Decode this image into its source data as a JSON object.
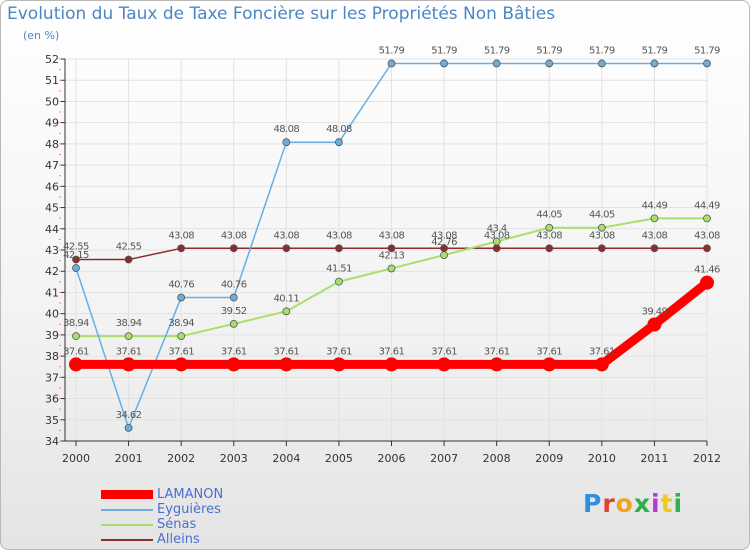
{
  "title": "Evolution du Taux de Taxe Foncière sur les Propriétés Non Bâties",
  "subtitle": "(en %)",
  "logo": {
    "text": "Proxiti",
    "colors": [
      "#2f8fe0",
      "#e0402f",
      "#f2a51c",
      "#2fb04a",
      "#b43ad0",
      "#f2c81c",
      "#2fb04a"
    ]
  },
  "chart_data": {
    "type": "line",
    "x": [
      "2000",
      "2001",
      "2002",
      "2003",
      "2004",
      "2005",
      "2006",
      "2007",
      "2008",
      "2009",
      "2010",
      "2011",
      "2012"
    ],
    "ylim": [
      34,
      52
    ],
    "yticks": [
      34,
      35,
      36,
      37,
      38,
      39,
      40,
      41,
      42,
      43,
      44,
      45,
      46,
      47,
      48,
      49,
      50,
      51,
      52
    ],
    "grid": true,
    "legend": "bottom-left",
    "series": [
      {
        "name": "LAMANON",
        "color": "#ff0000",
        "width": 9,
        "marker": 7,
        "values": [
          37.61,
          37.61,
          37.61,
          37.61,
          37.61,
          37.61,
          37.61,
          37.61,
          37.61,
          37.61,
          37.61,
          39.49,
          41.46
        ],
        "labels": [
          "37.61",
          "37.61",
          "37.61",
          "37.61",
          "37.61",
          "37.61",
          "37.61",
          "37.61",
          "37.61",
          "37.61",
          "37.61",
          "39.49",
          "41.46"
        ]
      },
      {
        "name": "Eyguières",
        "color": "#6aaee0",
        "width": 1.5,
        "marker": 3.5,
        "values": [
          42.15,
          34.62,
          40.76,
          40.76,
          48.08,
          48.08,
          51.79,
          51.79,
          51.79,
          51.79,
          51.79,
          51.79,
          51.79
        ],
        "labels": [
          "42.15",
          "34.62",
          "40.76",
          "40.76",
          "48.08",
          "48.08",
          "51.79",
          "51.79",
          "51.79",
          "51.79",
          "51.79",
          "51.79",
          "51.79"
        ]
      },
      {
        "name": "Sénas",
        "color": "#a8e06c",
        "width": 2,
        "marker": 3.5,
        "values": [
          38.94,
          38.94,
          38.94,
          39.52,
          40.11,
          41.51,
          42.13,
          42.76,
          43.4,
          44.05,
          44.05,
          44.49,
          44.49
        ],
        "labels": [
          "38.94",
          "38.94",
          "38.94",
          "39.52",
          "40.11",
          "41.51",
          "42.13",
          "42.76",
          "43.4",
          "44.05",
          "44.05",
          "44.49",
          "44.49"
        ]
      },
      {
        "name": "Alleins",
        "color": "#8b2e2e",
        "width": 1.5,
        "marker": 3.5,
        "values": [
          42.55,
          42.55,
          43.08,
          43.08,
          43.08,
          43.08,
          43.08,
          43.08,
          43.08,
          43.08,
          43.08,
          43.08,
          43.08
        ],
        "labels": [
          "42.55",
          "42.55",
          "43.08",
          "43.08",
          "43.08",
          "43.08",
          "43.08",
          "43.08",
          "43.08",
          "43.08",
          "43.08",
          "43.08",
          "43.08"
        ]
      }
    ]
  }
}
